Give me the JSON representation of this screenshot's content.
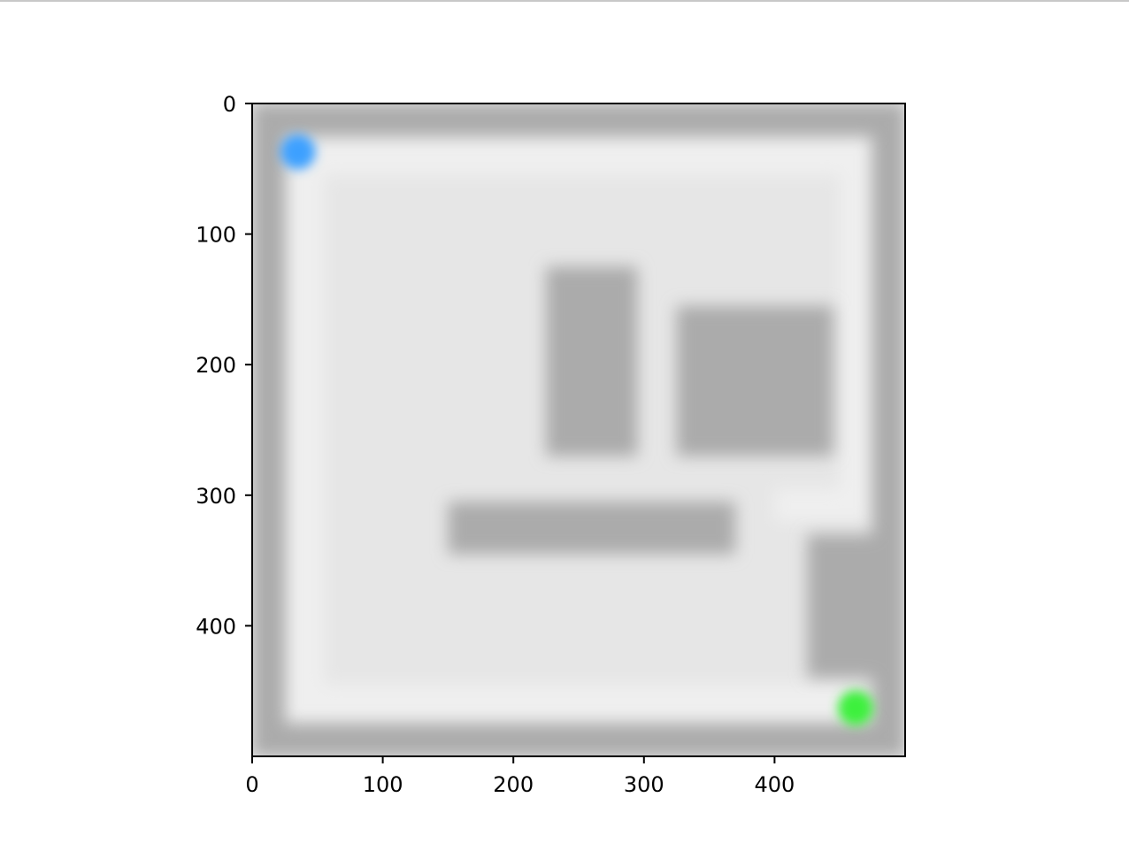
{
  "chart_data": {
    "type": "heatmap",
    "title": "",
    "xlabel": "",
    "ylabel": "",
    "xlim": [
      0,
      500
    ],
    "ylim": [
      500,
      0
    ],
    "y_axis_inverted": true,
    "x_ticks": [
      0,
      100,
      200,
      300,
      400
    ],
    "y_ticks": [
      0,
      100,
      200,
      300,
      400
    ],
    "x_tick_labels": [
      "0",
      "100",
      "200",
      "300",
      "400"
    ],
    "y_tick_labels": [
      "0",
      "100",
      "200",
      "300",
      "400"
    ],
    "grid": false,
    "legend": "none",
    "colors": {
      "wall": "#ababab",
      "floor": "#e6e6e6",
      "path_highlight": "#efefef",
      "start_marker": "#3da0ff",
      "goal_marker": "#3ef03e"
    },
    "walls": [
      {
        "name": "border-top",
        "x": [
          0,
          500
        ],
        "y": [
          0,
          25
        ]
      },
      {
        "name": "border-bottom",
        "x": [
          0,
          500
        ],
        "y": [
          475,
          500
        ]
      },
      {
        "name": "border-left",
        "x": [
          0,
          25
        ],
        "y": [
          0,
          500
        ]
      },
      {
        "name": "border-right",
        "x": [
          475,
          500
        ],
        "y": [
          0,
          500
        ]
      },
      {
        "name": "obstacle-tall-block",
        "x": [
          225,
          295
        ],
        "y": [
          125,
          270
        ]
      },
      {
        "name": "obstacle-square-block",
        "x": [
          325,
          445
        ],
        "y": [
          155,
          270
        ]
      },
      {
        "name": "obstacle-long-bar",
        "x": [
          150,
          370
        ],
        "y": [
          305,
          345
        ]
      },
      {
        "name": "obstacle-corner-block",
        "x": [
          425,
          500
        ],
        "y": [
          330,
          440
        ]
      }
    ],
    "path_segments": [
      {
        "name": "route-top",
        "x": [
          25,
          470
        ],
        "y": [
          25,
          55
        ]
      },
      {
        "name": "route-left",
        "x": [
          25,
          55
        ],
        "y": [
          25,
          475
        ]
      },
      {
        "name": "route-bottom",
        "x": [
          25,
          460
        ],
        "y": [
          445,
          475
        ]
      },
      {
        "name": "route-right-top",
        "x": [
          450,
          475
        ],
        "y": [
          25,
          300
        ]
      },
      {
        "name": "route-ledge",
        "x": [
          400,
          475
        ],
        "y": [
          295,
          320
        ]
      }
    ],
    "points": [
      {
        "name": "start",
        "x": 35,
        "y": 37
      },
      {
        "name": "goal",
        "x": 462,
        "y": 463
      }
    ]
  }
}
